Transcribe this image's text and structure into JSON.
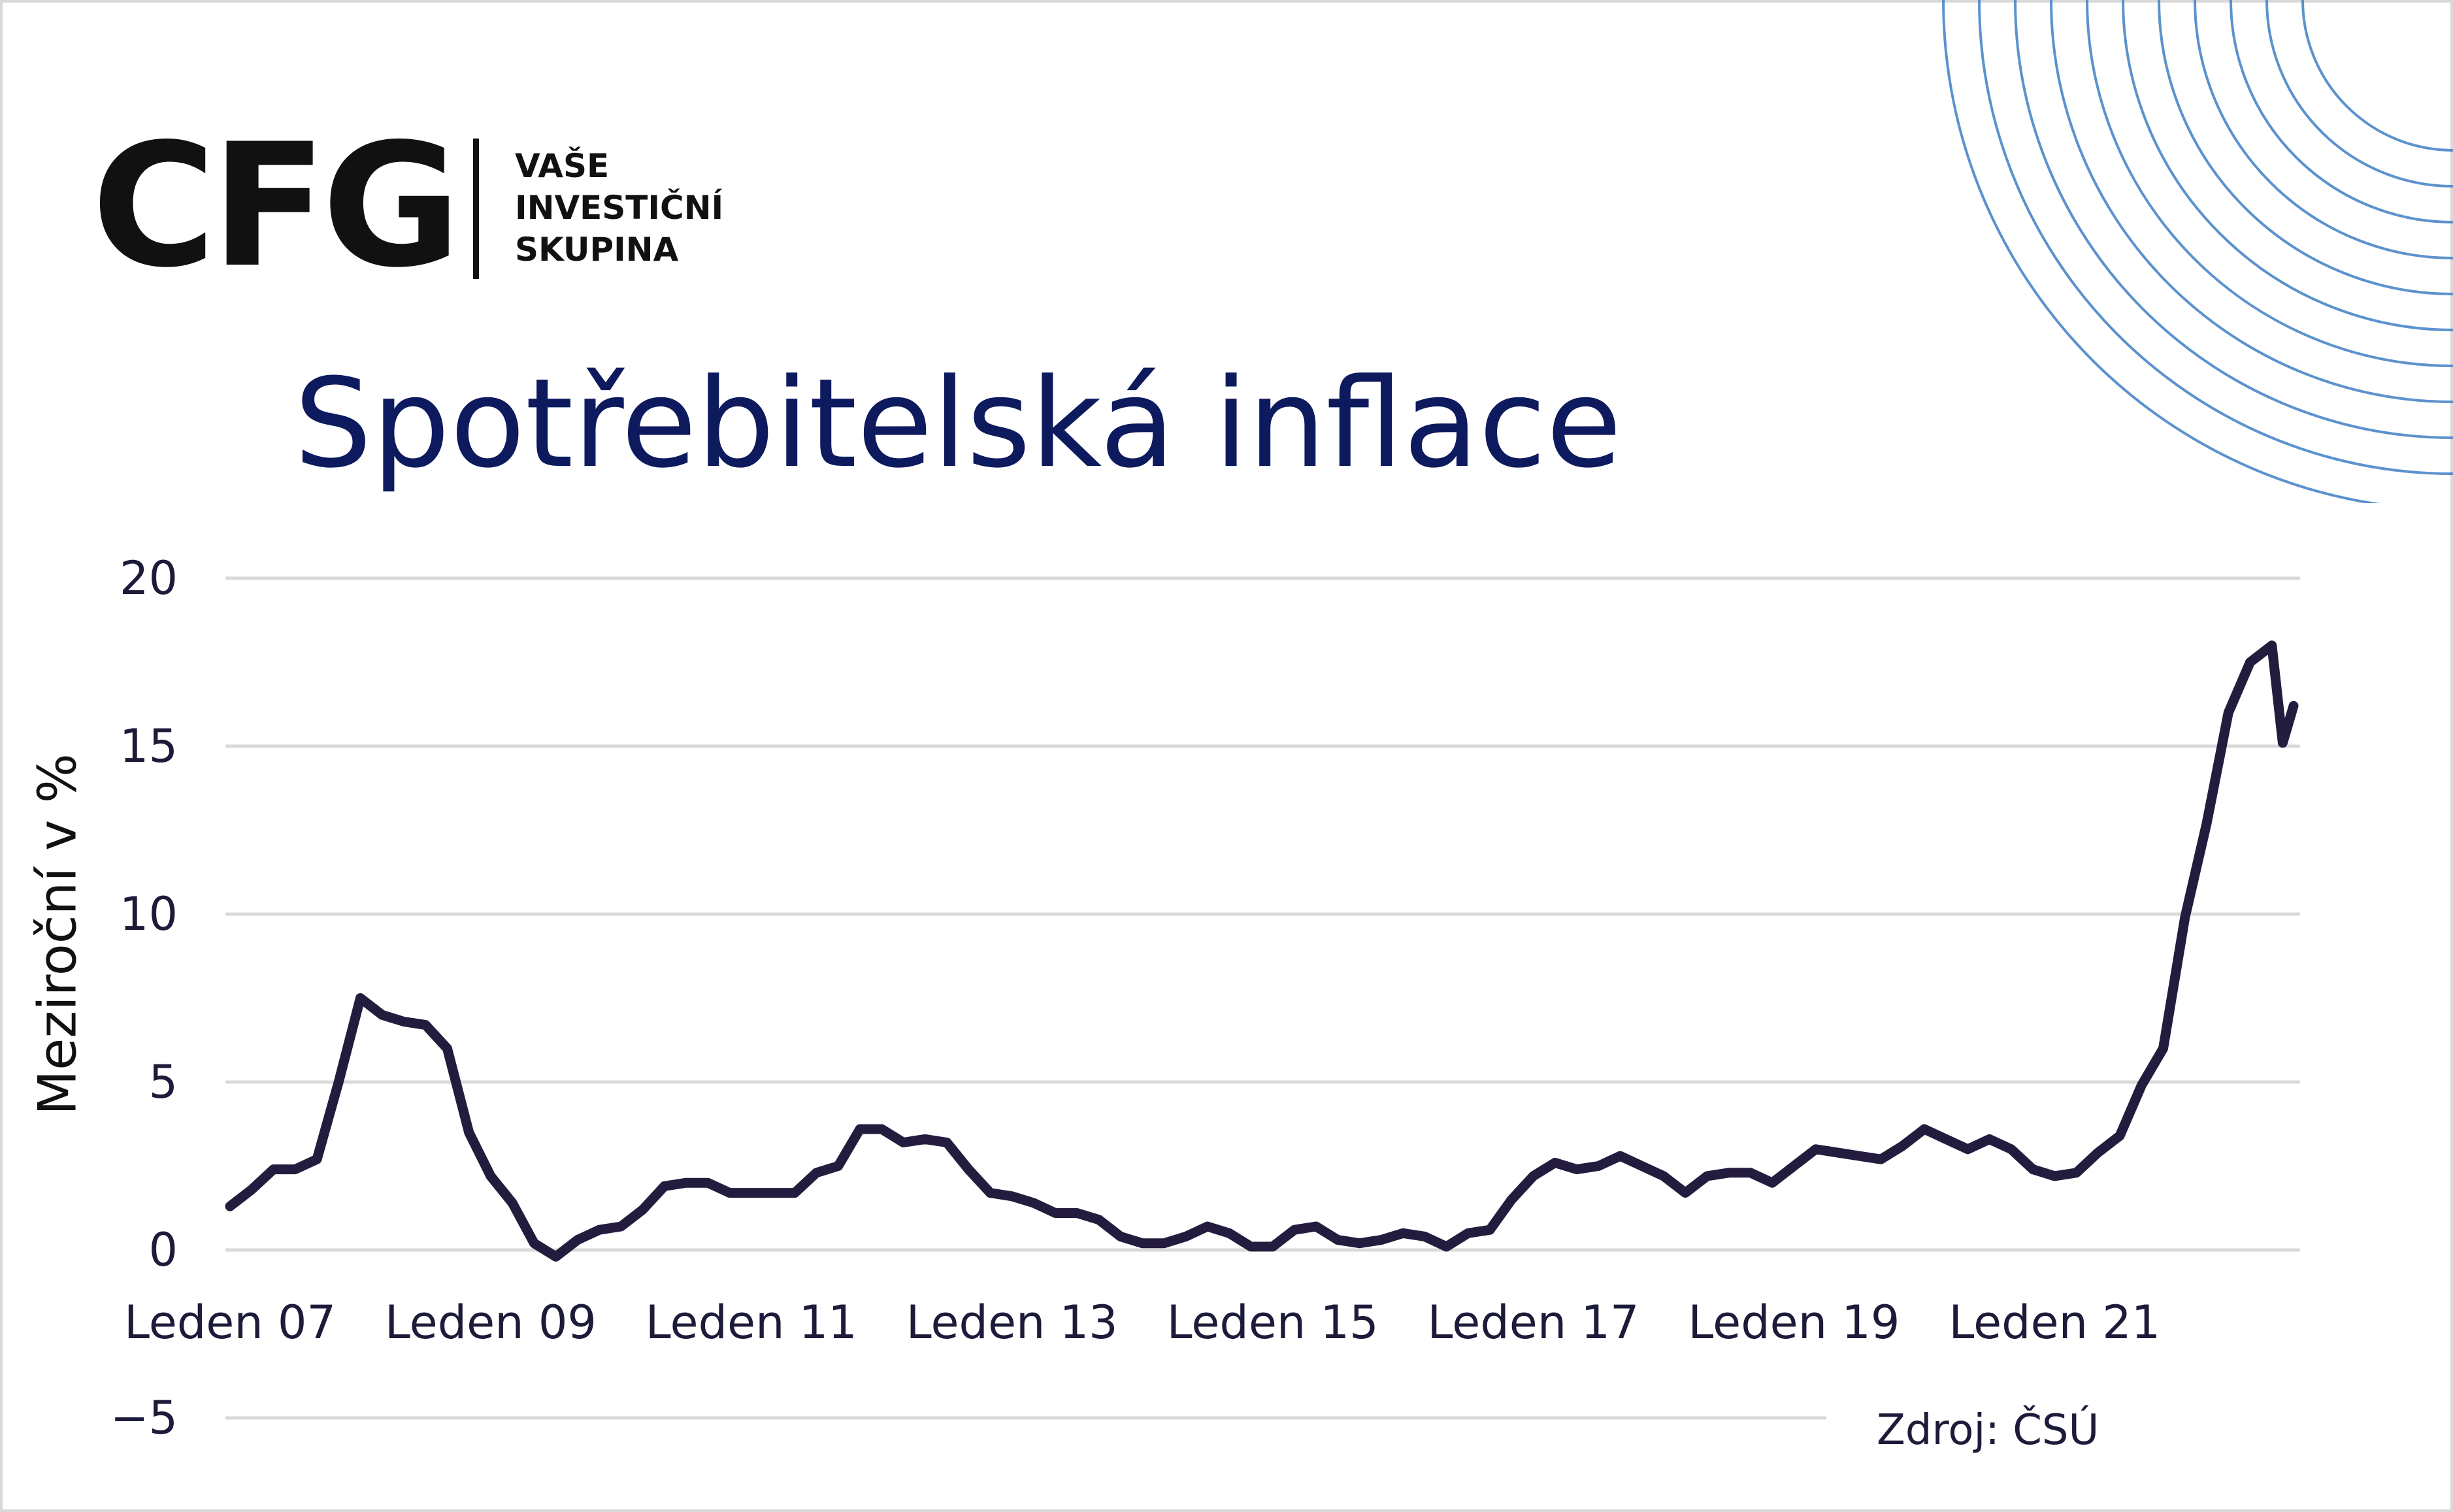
{
  "logo": {
    "text": "CFG",
    "tagline": [
      "VAŠE",
      "INVESTIČNÍ",
      "SKUPINA"
    ]
  },
  "source": "Zdroj: ČSÚ",
  "colors": {
    "title": "#0d1a5e",
    "line": "#241c3e",
    "grid": "#d9d9d9",
    "arcs": "#3f7fc4"
  },
  "chart_data": {
    "type": "line",
    "title": "Spotřebitelská inflace",
    "xlabel": "",
    "ylabel": "Meziroční v %",
    "ylim": [
      -5,
      20
    ],
    "yticks": [
      "20",
      "15",
      "10",
      "5",
      "0",
      "−5"
    ],
    "ytick_values": [
      20,
      15,
      10,
      5,
      0,
      -5
    ],
    "xticks": [
      "Leden 07",
      "Leden 09",
      "Leden 11",
      "Leden 13",
      "Leden 15",
      "Leden 17",
      "Leden 19",
      "Leden 21"
    ],
    "xtick_dates": [
      "2007-01",
      "2009-01",
      "2011-01",
      "2013-01",
      "2015-01",
      "2017-01",
      "2019-01",
      "2021-01"
    ],
    "grid": true,
    "legend": "none",
    "series": [
      {
        "x": [
          "2007-01",
          "2007-03",
          "2007-05",
          "2007-07",
          "2007-09",
          "2007-11",
          "2008-01",
          "2008-03",
          "2008-05",
          "2008-07",
          "2008-09",
          "2008-11",
          "2009-01",
          "2009-03",
          "2009-05",
          "2009-07",
          "2009-09",
          "2009-11",
          "2010-01",
          "2010-03",
          "2010-05",
          "2010-07",
          "2010-09",
          "2010-11",
          "2011-01",
          "2011-03",
          "2011-05",
          "2011-07",
          "2011-09",
          "2011-11",
          "2012-01",
          "2012-03",
          "2012-05",
          "2012-07",
          "2012-09",
          "2012-11",
          "2013-01",
          "2013-03",
          "2013-05",
          "2013-07",
          "2013-09",
          "2013-11",
          "2014-01",
          "2014-03",
          "2014-05",
          "2014-07",
          "2014-09",
          "2014-11",
          "2015-01",
          "2015-03",
          "2015-05",
          "2015-07",
          "2015-09",
          "2015-11",
          "2016-01",
          "2016-03",
          "2016-05",
          "2016-07",
          "2016-09",
          "2016-11",
          "2017-01",
          "2017-03",
          "2017-05",
          "2017-07",
          "2017-09",
          "2017-11",
          "2018-01",
          "2018-03",
          "2018-05",
          "2018-07",
          "2018-09",
          "2018-11",
          "2019-01",
          "2019-03",
          "2019-05",
          "2019-07",
          "2019-09",
          "2019-11",
          "2020-01",
          "2020-03",
          "2020-05",
          "2020-07",
          "2020-09",
          "2020-11",
          "2021-01",
          "2021-03",
          "2021-05",
          "2021-07",
          "2021-09",
          "2021-11",
          "2022-01",
          "2022-03",
          "2022-05",
          "2022-07",
          "2022-09",
          "2022-10",
          "2022-11"
        ],
        "values": [
          1.3,
          1.8,
          2.4,
          2.4,
          2.7,
          5.0,
          7.5,
          7.0,
          6.8,
          6.7,
          6.0,
          3.5,
          2.2,
          1.4,
          0.2,
          -0.2,
          0.3,
          0.6,
          0.7,
          1.2,
          1.9,
          2.0,
          2.0,
          1.7,
          1.7,
          1.7,
          1.7,
          2.3,
          2.5,
          3.6,
          3.6,
          3.2,
          3.3,
          3.2,
          2.4,
          1.7,
          1.6,
          1.4,
          1.1,
          1.1,
          0.9,
          0.4,
          0.2,
          0.2,
          0.4,
          0.7,
          0.5,
          0.1,
          0.1,
          0.6,
          0.7,
          0.3,
          0.2,
          0.3,
          0.5,
          0.4,
          0.1,
          0.5,
          0.6,
          1.5,
          2.2,
          2.6,
          2.4,
          2.5,
          2.8,
          2.5,
          2.2,
          1.7,
          2.2,
          2.3,
          2.3,
          2.0,
          2.5,
          3.0,
          2.9,
          2.8,
          2.7,
          3.1,
          3.6,
          3.3,
          3.0,
          3.3,
          3.0,
          2.4,
          2.2,
          2.3,
          2.9,
          3.4,
          4.9,
          6.0,
          9.9,
          12.7,
          16.0,
          17.5,
          18.0,
          15.1,
          16.2
        ]
      }
    ]
  }
}
